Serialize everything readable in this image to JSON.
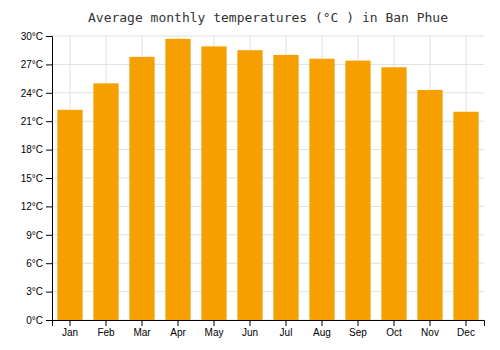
{
  "chart_data": {
    "type": "bar",
    "title": "Average monthly temperatures (°C ) in Ban Phue",
    "categories": [
      "Jan",
      "Feb",
      "Mar",
      "Apr",
      "May",
      "Jun",
      "Jul",
      "Aug",
      "Sep",
      "Oct",
      "Nov",
      "Dec"
    ],
    "values": [
      22.2,
      25.0,
      27.8,
      29.7,
      28.9,
      28.5,
      28.0,
      27.6,
      27.4,
      26.7,
      24.3,
      22.0
    ],
    "color": "#F5A000",
    "ylim": [
      0,
      30
    ],
    "yticks": [
      {
        "value": 0,
        "label": "0°C"
      },
      {
        "value": 3,
        "label": "3°C"
      },
      {
        "value": 6,
        "label": "6°C"
      },
      {
        "value": 9,
        "label": "9°C"
      },
      {
        "value": 12,
        "label": "12°C"
      },
      {
        "value": 15,
        "label": "15°C"
      },
      {
        "value": 18,
        "label": "18°C"
      },
      {
        "value": 21,
        "label": "21°C"
      },
      {
        "value": 24,
        "label": "24°C"
      },
      {
        "value": 27,
        "label": "27°C"
      },
      {
        "value": 30,
        "label": "30°C"
      }
    ],
    "grid": true
  }
}
